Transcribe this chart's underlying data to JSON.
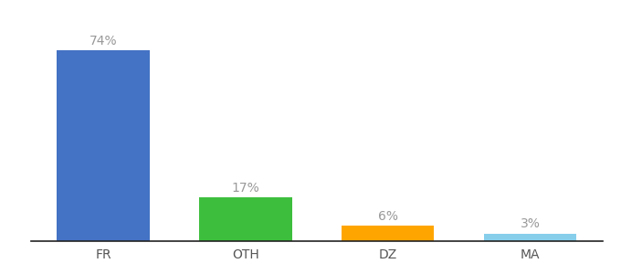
{
  "categories": [
    "FR",
    "OTH",
    "DZ",
    "MA"
  ],
  "values": [
    74,
    17,
    6,
    3
  ],
  "labels": [
    "74%",
    "17%",
    "6%",
    "3%"
  ],
  "bar_colors": [
    "#4472C4",
    "#3DBF3D",
    "#FFA500",
    "#87CEEB"
  ],
  "ylim": [
    0,
    85
  ],
  "background_color": "#ffffff",
  "label_fontsize": 10,
  "tick_fontsize": 10,
  "bar_width": 0.65,
  "label_color": "#999999",
  "tick_color": "#555555"
}
